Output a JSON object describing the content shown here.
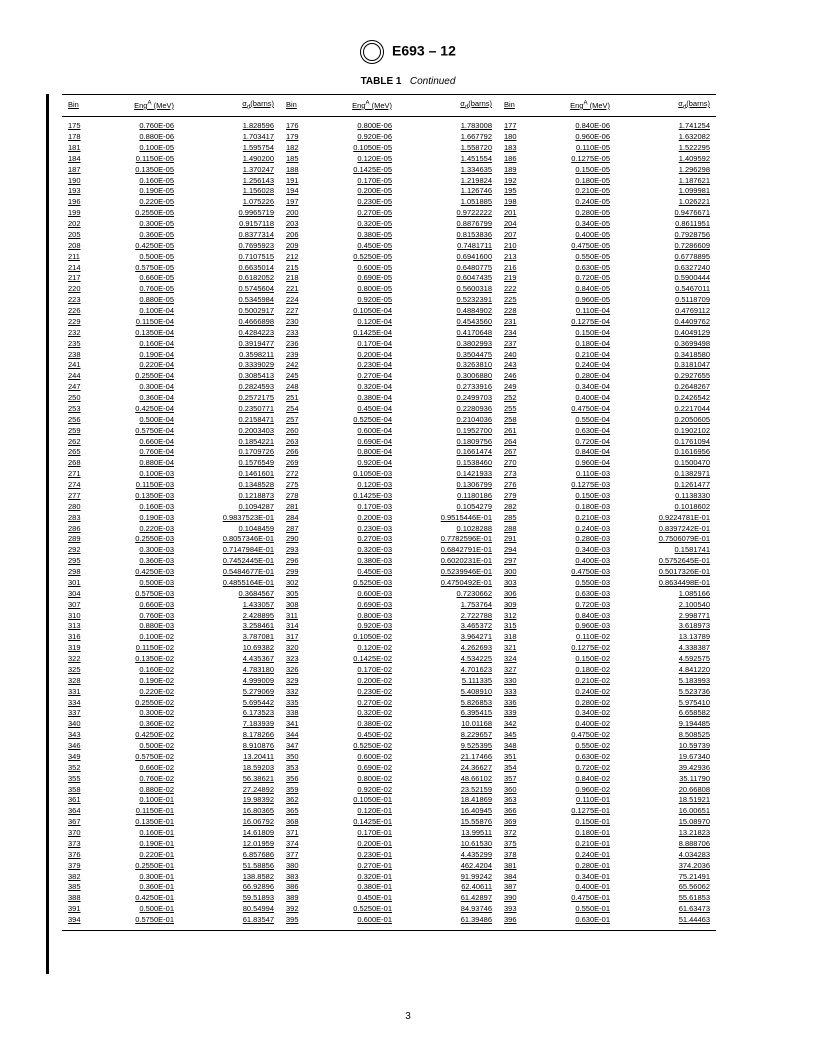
{
  "header": {
    "standard": "E693 – 12",
    "table_label": "TABLE 1",
    "table_status": "Continued",
    "footer_page": "3"
  },
  "columns": {
    "bin": "Bin",
    "eng_prefix": "Eng",
    "eng_sup": "A",
    "eng_unit": " (MeV)",
    "sigma_prefix": "σ",
    "sigma_sub": "d",
    "sigma_unit": "(barns)"
  },
  "rows": [
    {
      "b1": "175",
      "e1": "0.760E-06",
      "s1": "1.828596",
      "b2": "176",
      "e2": "0.800E-06",
      "s2": "1.783008",
      "b3": "177",
      "e3": "0.840E-06",
      "s3": "1.741254"
    },
    {
      "b1": "178",
      "e1": "0.880E-06",
      "s1": "1.703417",
      "b2": "179",
      "e2": "0.920E-06",
      "s2": "1.667792",
      "b3": "180",
      "e3": "0.960E-06",
      "s3": "1.632082"
    },
    {
      "b1": "181",
      "e1": "0.100E-05",
      "s1": "1.595754",
      "b2": "182",
      "e2": "0.1050E-05",
      "s2": "1.558720",
      "b3": "183",
      "e3": "0.110E-05",
      "s3": "1.522295"
    },
    {
      "b1": "184",
      "e1": "0.1150E-05",
      "s1": "1.490200",
      "b2": "185",
      "e2": "0.120E-05",
      "s2": "1.451554",
      "b3": "186",
      "e3": "0.1275E-05",
      "s3": "1.409592"
    },
    {
      "b1": "187",
      "e1": "0.1350E-05",
      "s1": "1.370247",
      "b2": "188",
      "e2": "0.1425E-05",
      "s2": "1.334635",
      "b3": "189",
      "e3": "0.150E-05",
      "s3": "1.296298"
    },
    {
      "b1": "190",
      "e1": "0.160E-05",
      "s1": "1.256143",
      "b2": "191",
      "e2": "0.170E-05",
      "s2": "1.219824",
      "b3": "192",
      "e3": "0.180E-05",
      "s3": "1.187621"
    },
    {
      "b1": "193",
      "e1": "0.190E-05",
      "s1": "1.156028",
      "b2": "194",
      "e2": "0.200E-05",
      "s2": "1.126746",
      "b3": "195",
      "e3": "0.210E-05",
      "s3": "1.099981"
    },
    {
      "b1": "196",
      "e1": "0.220E-05",
      "s1": "1.075226",
      "b2": "197",
      "e2": "0.230E-05",
      "s2": "1.051885",
      "b3": "198",
      "e3": "0.240E-05",
      "s3": "1.026221"
    },
    {
      "b1": "199",
      "e1": "0.2550E-05",
      "s1": "0.9965719",
      "b2": "200",
      "e2": "0.270E-05",
      "s2": "0.9722222",
      "b3": "201",
      "e3": "0.280E-05",
      "s3": "0.9476671"
    },
    {
      "b1": "202",
      "e1": "0.300E-05",
      "s1": "0.9157118",
      "b2": "203",
      "e2": "0.320E-05",
      "s2": "0.8876799",
      "b3": "204",
      "e3": "0.340E-05",
      "s3": "0.8611951"
    },
    {
      "b1": "205",
      "e1": "0.360E-05",
      "s1": "0.8377314",
      "b2": "206",
      "e2": "0.380E-05",
      "s2": "0.8153836",
      "b3": "207",
      "e3": "0.400E-05",
      "s3": "0.7928756"
    },
    {
      "b1": "208",
      "e1": "0.4250E-05",
      "s1": "0.7695923",
      "b2": "209",
      "e2": "0.450E-05",
      "s2": "0.7481711",
      "b3": "210",
      "e3": "0.4750E-05",
      "s3": "0.7286609"
    },
    {
      "b1": "211",
      "e1": "0.500E-05",
      "s1": "0.7107515",
      "b2": "212",
      "e2": "0.5250E-05",
      "s2": "0.6941600",
      "b3": "213",
      "e3": "0.550E-05",
      "s3": "0.6778895"
    },
    {
      "b1": "214",
      "e1": "0.5750E-05",
      "s1": "0.6635014",
      "b2": "215",
      "e2": "0.600E-05",
      "s2": "0.6480775",
      "b3": "216",
      "e3": "0.630E-05",
      "s3": "0.6327240"
    },
    {
      "b1": "217",
      "e1": "0.660E-05",
      "s1": "0.6182052",
      "b2": "218",
      "e2": "0.690E-05",
      "s2": "0.6047435",
      "b3": "219",
      "e3": "0.720E-05",
      "s3": "0.5900444"
    },
    {
      "b1": "220",
      "e1": "0.760E-05",
      "s1": "0.5745604",
      "b2": "221",
      "e2": "0.800E-05",
      "s2": "0.5600318",
      "b3": "222",
      "e3": "0.840E-05",
      "s3": "0.5467011"
    },
    {
      "b1": "223",
      "e1": "0.880E-05",
      "s1": "0.5345984",
      "b2": "224",
      "e2": "0.920E-05",
      "s2": "0.5232391",
      "b3": "225",
      "e3": "0.960E-05",
      "s3": "0.5118709"
    },
    {
      "b1": "226",
      "e1": "0.100E-04",
      "s1": "0.5002917",
      "b2": "227",
      "e2": "0.1050E-04",
      "s2": "0.4884902",
      "b3": "228",
      "e3": "0.110E-04",
      "s3": "0.4769112"
    },
    {
      "b1": "229",
      "e1": "0.1150E-04",
      "s1": "0.4666898",
      "b2": "230",
      "e2": "0.120E-04",
      "s2": "0.4543560",
      "b3": "231",
      "e3": "0.1275E-04",
      "s3": "0.4409762"
    },
    {
      "b1": "232",
      "e1": "0.1350E-04",
      "s1": "0.4284223",
      "b2": "233",
      "e2": "0.1425E-04",
      "s2": "0.4170648",
      "b3": "234",
      "e3": "0.150E-04",
      "s3": "0.4049129"
    },
    {
      "b1": "235",
      "e1": "0.160E-04",
      "s1": "0.3919477",
      "b2": "236",
      "e2": "0.170E-04",
      "s2": "0.3802993",
      "b3": "237",
      "e3": "0.180E-04",
      "s3": "0.3699498"
    },
    {
      "b1": "238",
      "e1": "0.190E-04",
      "s1": "0.3598211",
      "b2": "239",
      "e2": "0.200E-04",
      "s2": "0.3504475",
      "b3": "240",
      "e3": "0.210E-04",
      "s3": "0.3418580"
    },
    {
      "b1": "241",
      "e1": "0.220E-04",
      "s1": "0.3339029",
      "b2": "242",
      "e2": "0.230E-04",
      "s2": "0.3263810",
      "b3": "243",
      "e3": "0.240E-04",
      "s3": "0.3181047"
    },
    {
      "b1": "244",
      "e1": "0.2550E-04",
      "s1": "0.3085413",
      "b2": "245",
      "e2": "0.270E-04",
      "s2": "0.3006880",
      "b3": "246",
      "e3": "0.280E-04",
      "s3": "0.2927655"
    },
    {
      "b1": "247",
      "e1": "0.300E-04",
      "s1": "0.2824593",
      "b2": "248",
      "e2": "0.320E-04",
      "s2": "0.2733916",
      "b3": "249",
      "e3": "0.340E-04",
      "s3": "0.2648267"
    },
    {
      "b1": "250",
      "e1": "0.360E-04",
      "s1": "0.2572175",
      "b2": "251",
      "e2": "0.380E-04",
      "s2": "0.2499703",
      "b3": "252",
      "e3": "0.400E-04",
      "s3": "0.2426542"
    },
    {
      "b1": "253",
      "e1": "0.4250E-04",
      "s1": "0.2350771",
      "b2": "254",
      "e2": "0.450E-04",
      "s2": "0.2280936",
      "b3": "255",
      "e3": "0.4750E-04",
      "s3": "0.2217044"
    },
    {
      "b1": "256",
      "e1": "0.500E-04",
      "s1": "0.2158471",
      "b2": "257",
      "e2": "0.5250E-04",
      "s2": "0.2104036",
      "b3": "258",
      "e3": "0.550E-04",
      "s3": "0.2050605"
    },
    {
      "b1": "259",
      "e1": "0.5750E-04",
      "s1": "0.2003403",
      "b2": "260",
      "e2": "0.600E-04",
      "s2": "0.1952700",
      "b3": "261",
      "e3": "0.630E-04",
      "s3": "0.1902102"
    },
    {
      "b1": "262",
      "e1": "0.660E-04",
      "s1": "0.1854221",
      "b2": "263",
      "e2": "0.690E-04",
      "s2": "0.1809756",
      "b3": "264",
      "e3": "0.720E-04",
      "s3": "0.1761094"
    },
    {
      "b1": "265",
      "e1": "0.760E-04",
      "s1": "0.1709726",
      "b2": "266",
      "e2": "0.800E-04",
      "s2": "0.1661474",
      "b3": "267",
      "e3": "0.840E-04",
      "s3": "0.1616956"
    },
    {
      "b1": "268",
      "e1": "0.880E-04",
      "s1": "0.1576549",
      "b2": "269",
      "e2": "0.920E-04",
      "s2": "0.1538460",
      "b3": "270",
      "e3": "0.960E-04",
      "s3": "0.1500470"
    },
    {
      "b1": "271",
      "e1": "0.100E-03",
      "s1": "0.1461601",
      "b2": "272",
      "e2": "0.1050E-03",
      "s2": "0.1421933",
      "b3": "273",
      "e3": "0.110E-03",
      "s3": "0.1382971"
    },
    {
      "b1": "274",
      "e1": "0.1150E-03",
      "s1": "0.1348528",
      "b2": "275",
      "e2": "0.120E-03",
      "s2": "0.1306799",
      "b3": "276",
      "e3": "0.1275E-03",
      "s3": "0.1261477"
    },
    {
      "b1": "277",
      "e1": "0.1350E-03",
      "s1": "0.1218873",
      "b2": "278",
      "e2": "0.1425E-03",
      "s2": "0.1180186",
      "b3": "279",
      "e3": "0.150E-03",
      "s3": "0.1138330"
    },
    {
      "b1": "280",
      "e1": "0.160E-03",
      "s1": "0.1094287",
      "b2": "281",
      "e2": "0.170E-03",
      "s2": "0.1054279",
      "b3": "282",
      "e3": "0.180E-03",
      "s3": "0.1018602"
    },
    {
      "b1": "283",
      "e1": "0.190E-03",
      "s1": "0.9837523E-01",
      "b2": "284",
      "e2": "0.200E-03",
      "s2": "0.9515446E-01",
      "b3": "285",
      "e3": "0.210E-03",
      "s3": "0.9224781E-01"
    },
    {
      "b1": "286",
      "e1": "0.220E-03",
      "s1": "0.1048459",
      "b2": "287",
      "e2": "0.230E-03",
      "s2": "0.1028288",
      "b3": "288",
      "e3": "0.240E-03",
      "s3": "0.8397242E-01"
    },
    {
      "b1": "289",
      "e1": "0.2550E-03",
      "s1": "0.8057346E-01",
      "b2": "290",
      "e2": "0.270E-03",
      "s2": "0.7782596E-01",
      "b3": "291",
      "e3": "0.280E-03",
      "s3": "0.7506079E-01"
    },
    {
      "b1": "292",
      "e1": "0.300E-03",
      "s1": "0.7147984E-01",
      "b2": "293",
      "e2": "0.320E-03",
      "s2": "0.6842791E-01",
      "b3": "294",
      "e3": "0.340E-03",
      "s3": "0.1581741"
    },
    {
      "b1": "295",
      "e1": "0.360E-03",
      "s1": "0.7452445E-01",
      "b2": "296",
      "e2": "0.380E-03",
      "s2": "0.6020231E-01",
      "b3": "297",
      "e3": "0.400E-03",
      "s3": "0.5752645E-01"
    },
    {
      "b1": "298",
      "e1": "0.4250E-03",
      "s1": "0.5484677E-01",
      "b2": "299",
      "e2": "0.450E-03",
      "s2": "0.5239946E-01",
      "b3": "300",
      "e3": "0.4750E-03",
      "s3": "0.5017326E-01"
    },
    {
      "b1": "301",
      "e1": "0.500E-03",
      "s1": "0.4855164E-01",
      "b2": "302",
      "e2": "0.5250E-03",
      "s2": "0.4750492E-01",
      "b3": "303",
      "e3": "0.550E-03",
      "s3": "0.8634498E-01"
    },
    {
      "b1": "304",
      "e1": "0.5750E-03",
      "s1": "0.3684567",
      "b2": "305",
      "e2": "0.600E-03",
      "s2": "0.7230662",
      "b3": "306",
      "e3": "0.630E-03",
      "s3": "1.085166"
    },
    {
      "b1": "307",
      "e1": "0.660E-03",
      "s1": "1.433057",
      "b2": "308",
      "e2": "0.690E-03",
      "s2": "1.753764",
      "b3": "309",
      "e3": "0.720E-03",
      "s3": "2.100540"
    },
    {
      "b1": "310",
      "e1": "0.760E-03",
      "s1": "2.428895",
      "b2": "311",
      "e2": "0.800E-03",
      "s2": "2.722788",
      "b3": "312",
      "e3": "0.840E-03",
      "s3": "2.998771"
    },
    {
      "b1": "313",
      "e1": "0.880E-03",
      "s1": "3.258461",
      "b2": "314",
      "e2": "0.920E-03",
      "s2": "3.465372",
      "b3": "315",
      "e3": "0.960E-03",
      "s3": "3.618973"
    },
    {
      "b1": "316",
      "e1": "0.100E-02",
      "s1": "3.787081",
      "b2": "317",
      "e2": "0.1050E-02",
      "s2": "3.964271",
      "b3": "318",
      "e3": "0.110E-02",
      "s3": "13.13789"
    },
    {
      "b1": "319",
      "e1": "0.1150E-02",
      "s1": "10.69382",
      "b2": "320",
      "e2": "0.120E-02",
      "s2": "4.262693",
      "b3": "321",
      "e3": "0.1275E-02",
      "s3": "4.338387"
    },
    {
      "b1": "322",
      "e1": "0.1350E-02",
      "s1": "4.435367",
      "b2": "323",
      "e2": "0.1425E-02",
      "s2": "4.534225",
      "b3": "324",
      "e3": "0.150E-02",
      "s3": "4.592575"
    },
    {
      "b1": "325",
      "e1": "0.160E-02",
      "s1": "4.783180",
      "b2": "326",
      "e2": "0.170E-02",
      "s2": "4.701623",
      "b3": "327",
      "e3": "0.180E-02",
      "s3": "4.841220"
    },
    {
      "b1": "328",
      "e1": "0.190E-02",
      "s1": "4.999009",
      "b2": "329",
      "e2": "0.200E-02",
      "s2": "5.111335",
      "b3": "330",
      "e3": "0.210E-02",
      "s3": "5.183993"
    },
    {
      "b1": "331",
      "e1": "0.220E-02",
      "s1": "5.279069",
      "b2": "332",
      "e2": "0.230E-02",
      "s2": "5.408910",
      "b3": "333",
      "e3": "0.240E-02",
      "s3": "5.523736"
    },
    {
      "b1": "334",
      "e1": "0.2550E-02",
      "s1": "5.695442",
      "b2": "335",
      "e2": "0.270E-02",
      "s2": "5.826853",
      "b3": "336",
      "e3": "0.280E-02",
      "s3": "5.975410"
    },
    {
      "b1": "337",
      "e1": "0.300E-02",
      "s1": "6.173523",
      "b2": "338",
      "e2": "0.320E-02",
      "s2": "6.395415",
      "b3": "339",
      "e3": "0.340E-02",
      "s3": "6.658582"
    },
    {
      "b1": "340",
      "e1": "0.360E-02",
      "s1": "7.183939",
      "b2": "341",
      "e2": "0.380E-02",
      "s2": "10.01168",
      "b3": "342",
      "e3": "0.400E-02",
      "s3": "9.194485"
    },
    {
      "b1": "343",
      "e1": "0.4250E-02",
      "s1": "8.178266",
      "b2": "344",
      "e2": "0.450E-02",
      "s2": "8.229657",
      "b3": "345",
      "e3": "0.4750E-02",
      "s3": "8.508525"
    },
    {
      "b1": "346",
      "e1": "0.500E-02",
      "s1": "8.910876",
      "b2": "347",
      "e2": "0.5250E-02",
      "s2": "9.525395",
      "b3": "348",
      "e3": "0.550E-02",
      "s3": "10.59739"
    },
    {
      "b1": "349",
      "e1": "0.5750E-02",
      "s1": "13.20411",
      "b2": "350",
      "e2": "0.600E-02",
      "s2": "21.17466",
      "b3": "351",
      "e3": "0.630E-02",
      "s3": "19.67340"
    },
    {
      "b1": "352",
      "e1": "0.660E-02",
      "s1": "18.59203",
      "b2": "353",
      "e2": "0.690E-02",
      "s2": "24.36627",
      "b3": "354",
      "e3": "0.720E-02",
      "s3": "39.42936"
    },
    {
      "b1": "355",
      "e1": "0.760E-02",
      "s1": "56.38621",
      "b2": "356",
      "e2": "0.800E-02",
      "s2": "48.66102",
      "b3": "357",
      "e3": "0.840E-02",
      "s3": "35.11790"
    },
    {
      "b1": "358",
      "e1": "0.880E-02",
      "s1": "27.24892",
      "b2": "359",
      "e2": "0.920E-02",
      "s2": "23.52159",
      "b3": "360",
      "e3": "0.960E-02",
      "s3": "20.66808"
    },
    {
      "b1": "361",
      "e1": "0.100E-01",
      "s1": "19.98392",
      "b2": "362",
      "e2": "0.1050E-01",
      "s2": "18.41869",
      "b3": "363",
      "e3": "0.110E-01",
      "s3": "18.51921"
    },
    {
      "b1": "364",
      "e1": "0.1150E-01",
      "s1": "16.80365",
      "b2": "365",
      "e2": "0.120E-01",
      "s2": "16.40945",
      "b3": "366",
      "e3": "0.1275E-01",
      "s3": "16.00651"
    },
    {
      "b1": "367",
      "e1": "0.1350E-01",
      "s1": "16.06792",
      "b2": "368",
      "e2": "0.1425E-01",
      "s2": "15.55876",
      "b3": "369",
      "e3": "0.150E-01",
      "s3": "15.08970"
    },
    {
      "b1": "370",
      "e1": "0.160E-01",
      "s1": "14.61809",
      "b2": "371",
      "e2": "0.170E-01",
      "s2": "13.99511",
      "b3": "372",
      "e3": "0.180E-01",
      "s3": "13.21823"
    },
    {
      "b1": "373",
      "e1": "0.190E-01",
      "s1": "12.01959",
      "b2": "374",
      "e2": "0.200E-01",
      "s2": "10.61530",
      "b3": "375",
      "e3": "0.210E-01",
      "s3": "8.888706"
    },
    {
      "b1": "376",
      "e1": "0.220E-01",
      "s1": "6.857686",
      "b2": "377",
      "e2": "0.230E-01",
      "s2": "4.435299",
      "b3": "378",
      "e3": "0.240E-01",
      "s3": "4.034283"
    },
    {
      "b1": "379",
      "e1": "0.2550E-01",
      "s1": "51.58856",
      "b2": "380",
      "e2": "0.270E-01",
      "s2": "462.4204",
      "b3": "381",
      "e3": "0.280E-01",
      "s3": "374.2036"
    },
    {
      "b1": "382",
      "e1": "0.300E-01",
      "s1": "138.8582",
      "b2": "383",
      "e2": "0.320E-01",
      "s2": "91.99242",
      "b3": "384",
      "e3": "0.340E-01",
      "s3": "75.21491"
    },
    {
      "b1": "385",
      "e1": "0.360E-01",
      "s1": "66.92896",
      "b2": "386",
      "e2": "0.380E-01",
      "s2": "62.40611",
      "b3": "387",
      "e3": "0.400E-01",
      "s3": "65.56062"
    },
    {
      "b1": "388",
      "e1": "0.4250E-01",
      "s1": "59.51893",
      "b2": "389",
      "e2": "0.450E-01",
      "s2": "61.42897",
      "b3": "390",
      "e3": "0.4750E-01",
      "s3": "55.61853"
    },
    {
      "b1": "391",
      "e1": "0.500E-01",
      "s1": "80.54994",
      "b2": "392",
      "e2": "0.5250E-01",
      "s2": "84.93746",
      "b3": "393",
      "e3": "0.550E-01",
      "s3": "61.63473"
    },
    {
      "b1": "394",
      "e1": "0.5750E-01",
      "s1": "61.83547",
      "b2": "395",
      "e2": "0.600E-01",
      "s2": "61.39486",
      "b3": "396",
      "e3": "0.630E-01",
      "s3": "51.44463"
    }
  ]
}
